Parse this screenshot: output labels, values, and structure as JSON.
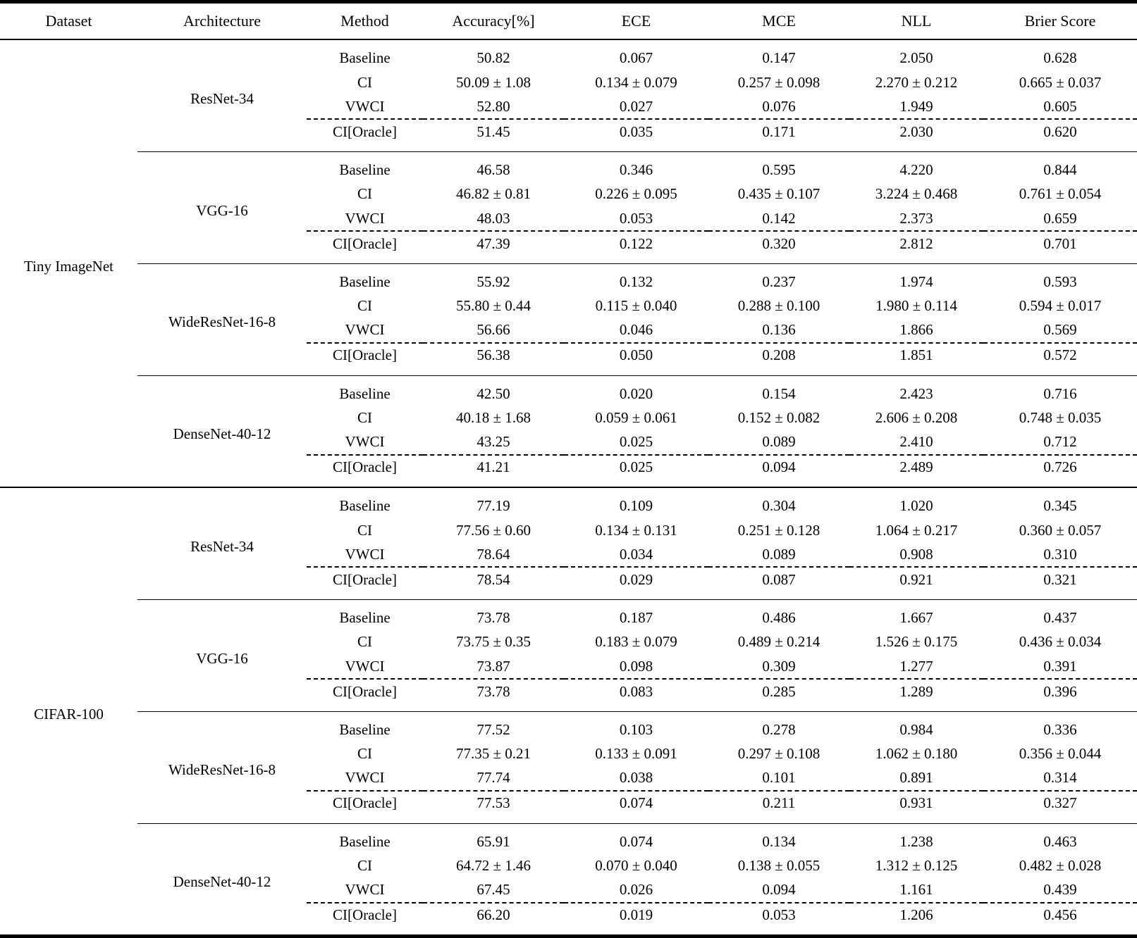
{
  "page": {
    "background": "#ffffff",
    "text_color": "#000000"
  },
  "table": {
    "columns": [
      "Dataset",
      "Architecture",
      "Method",
      "Accuracy[%]",
      "ECE",
      "MCE",
      "NLL",
      "Brier Score"
    ],
    "groups": [
      {
        "dataset": "Tiny ImageNet",
        "blocks": [
          {
            "architecture": "ResNet-34",
            "rows": [
              {
                "method": "Baseline",
                "values": [
                  "50.82",
                  "0.067",
                  "0.147",
                  "2.050",
                  "0.628"
                ]
              },
              {
                "method": "CI",
                "values": [
                  "50.09 ± 1.08",
                  "0.134 ± 0.079",
                  "0.257 ± 0.098",
                  "2.270 ± 0.212",
                  "0.665 ± 0.037"
                ]
              },
              {
                "method": "VWCI",
                "values": [
                  "52.80",
                  "0.027",
                  "0.076",
                  "1.949",
                  "0.605"
                ],
                "bold": [
                  true,
                  true,
                  true,
                  true,
                  true
                ]
              },
              {
                "method": "CI[Oracle]",
                "values": [
                  "51.45",
                  "0.035",
                  "0.171",
                  "2.030",
                  "0.620"
                ],
                "dashed_top": true
              }
            ]
          },
          {
            "architecture": "VGG-16",
            "rows": [
              {
                "method": "Baseline",
                "values": [
                  "46.58",
                  "0.346",
                  "0.595",
                  "4.220",
                  "0.844"
                ]
              },
              {
                "method": "CI",
                "values": [
                  "46.82 ± 0.81",
                  "0.226 ± 0.095",
                  "0.435 ± 0.107",
                  "3.224 ± 0.468",
                  "0.761 ± 0.054"
                ]
              },
              {
                "method": "VWCI",
                "values": [
                  "48.03",
                  "0.053",
                  "0.142",
                  "2.373",
                  "0.659"
                ],
                "bold": [
                  true,
                  true,
                  true,
                  true,
                  true
                ]
              },
              {
                "method": "CI[Oracle]",
                "values": [
                  "47.39",
                  "0.122",
                  "0.320",
                  "2.812",
                  "0.701"
                ],
                "dashed_top": true
              }
            ]
          },
          {
            "architecture": "WideResNet-16-8",
            "rows": [
              {
                "method": "Baseline",
                "values": [
                  "55.92",
                  "0.132",
                  "0.237",
                  "1.974",
                  "0.593"
                ]
              },
              {
                "method": "CI",
                "values": [
                  "55.80 ± 0.44",
                  "0.115 ± 0.040",
                  "0.288 ± 0.100",
                  "1.980 ± 0.114",
                  "0.594 ± 0.017"
                ]
              },
              {
                "method": "VWCI",
                "values": [
                  "56.66",
                  "0.046",
                  "0.136",
                  "1.866",
                  "0.569"
                ],
                "bold": [
                  true,
                  true,
                  true,
                  true,
                  true
                ]
              },
              {
                "method": "CI[Oracle]",
                "values": [
                  "56.38",
                  "0.050",
                  "0.208",
                  "1.851",
                  "0.572"
                ],
                "dashed_top": true
              }
            ]
          },
          {
            "architecture": "DenseNet-40-12",
            "rows": [
              {
                "method": "Baseline",
                "values": [
                  "42.50",
                  "0.020",
                  "0.154",
                  "2.423",
                  "0.716"
                ],
                "bold": [
                  false,
                  true,
                  false,
                  false,
                  false
                ]
              },
              {
                "method": "CI",
                "values": [
                  "40.18 ± 1.68",
                  "0.059 ± 0.061",
                  "0.152 ± 0.082",
                  "2.606 ± 0.208",
                  "0.748 ± 0.035"
                ]
              },
              {
                "method": "VWCI",
                "values": [
                  "43.25",
                  "0.025",
                  "0.089",
                  "2.410",
                  "0.712"
                ],
                "bold": [
                  true,
                  false,
                  true,
                  true,
                  true
                ]
              },
              {
                "method": "CI[Oracle]",
                "values": [
                  "41.21",
                  "0.025",
                  "0.094",
                  "2.489",
                  "0.726"
                ],
                "dashed_top": true
              }
            ]
          }
        ]
      },
      {
        "dataset": "CIFAR-100",
        "blocks": [
          {
            "architecture": "ResNet-34",
            "rows": [
              {
                "method": "Baseline",
                "values": [
                  "77.19",
                  "0.109",
                  "0.304",
                  "1.020",
                  "0.345"
                ]
              },
              {
                "method": "CI",
                "values": [
                  "77.56 ± 0.60",
                  "0.134 ± 0.131",
                  "0.251 ± 0.128",
                  "1.064 ± 0.217",
                  "0.360 ± 0.057"
                ]
              },
              {
                "method": "VWCI",
                "values": [
                  "78.64",
                  "0.034",
                  "0.089",
                  "0.908",
                  "0.310"
                ],
                "bold": [
                  true,
                  true,
                  true,
                  true,
                  true
                ]
              },
              {
                "method": "CI[Oracle]",
                "values": [
                  "78.54",
                  "0.029",
                  "0.087",
                  "0.921",
                  "0.321"
                ],
                "dashed_top": true
              }
            ]
          },
          {
            "architecture": "VGG-16",
            "rows": [
              {
                "method": "Baseline",
                "values": [
                  "73.78",
                  "0.187",
                  "0.486",
                  "1.667",
                  "0.437"
                ]
              },
              {
                "method": "CI",
                "values": [
                  "73.75 ± 0.35",
                  "0.183 ± 0.079",
                  "0.489 ± 0.214",
                  "1.526 ± 0.175",
                  "0.436 ± 0.034"
                ]
              },
              {
                "method": "VWCI",
                "values": [
                  "73.87",
                  "0.098",
                  "0.309",
                  "1.277",
                  "0.391"
                ],
                "bold": [
                  true,
                  true,
                  true,
                  true,
                  true
                ]
              },
              {
                "method": "CI[Oracle]",
                "values": [
                  "73.78",
                  "0.083",
                  "0.285",
                  "1.289",
                  "0.396"
                ],
                "dashed_top": true
              }
            ]
          },
          {
            "architecture": "WideResNet-16-8",
            "rows": [
              {
                "method": "Baseline",
                "values": [
                  "77.52",
                  "0.103",
                  "0.278",
                  "0.984",
                  "0.336"
                ]
              },
              {
                "method": "CI",
                "values": [
                  "77.35 ± 0.21",
                  "0.133 ± 0.091",
                  "0.297 ± 0.108",
                  "1.062 ± 0.180",
                  "0.356 ± 0.044"
                ]
              },
              {
                "method": "VWCI",
                "values": [
                  "77.74",
                  "0.038",
                  "0.101",
                  "0.891",
                  "0.314"
                ],
                "bold": [
                  true,
                  true,
                  true,
                  true,
                  true
                ]
              },
              {
                "method": "CI[Oracle]",
                "values": [
                  "77.53",
                  "0.074",
                  "0.211",
                  "0.931",
                  "0.327"
                ],
                "dashed_top": true
              }
            ]
          },
          {
            "architecture": "DenseNet-40-12",
            "rows": [
              {
                "method": "Baseline",
                "values": [
                  "65.91",
                  "0.074",
                  "0.134",
                  "1.238",
                  "0.463"
                ]
              },
              {
                "method": "CI",
                "values": [
                  "64.72 ± 1.46",
                  "0.070 ± 0.040",
                  "0.138 ± 0.055",
                  "1.312 ± 0.125",
                  "0.482 ± 0.028"
                ]
              },
              {
                "method": "VWCI",
                "values": [
                  "67.45",
                  "0.026",
                  "0.094",
                  "1.161",
                  "0.439"
                ],
                "bold": [
                  true,
                  true,
                  true,
                  true,
                  true
                ]
              },
              {
                "method": "CI[Oracle]",
                "values": [
                  "66.20",
                  "0.019",
                  "0.053",
                  "1.206",
                  "0.456"
                ],
                "dashed_top": true
              }
            ]
          }
        ]
      }
    ]
  }
}
